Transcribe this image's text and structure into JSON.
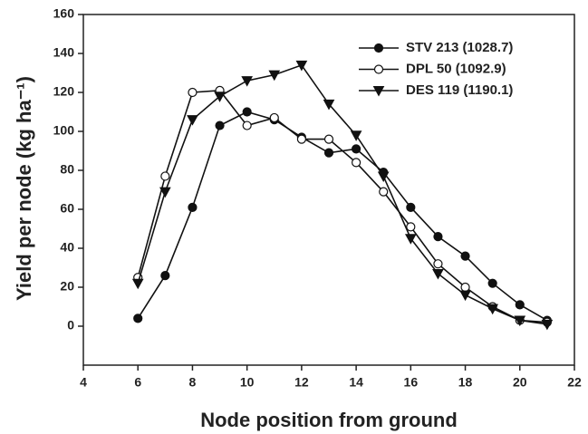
{
  "chart_data": {
    "type": "line",
    "xlabel": "Node position from ground",
    "ylabel": "Yield per node (kg ha⁻¹)",
    "x": [
      6,
      7,
      8,
      9,
      10,
      11,
      12,
      13,
      14,
      15,
      16,
      17,
      18,
      19,
      20,
      21
    ],
    "series": [
      {
        "name": "STV 213 (1028.7)",
        "color": "#111111",
        "marker": "circle",
        "values": [
          4,
          26,
          61,
          103,
          110,
          106,
          97,
          89,
          91,
          79,
          61,
          46,
          36,
          22,
          11,
          3
        ]
      },
      {
        "name": "DPL 50 (1092.9)",
        "color": "#111111",
        "marker": "open-circle",
        "values": [
          25,
          77,
          120,
          121,
          103,
          107,
          96,
          96,
          84,
          69,
          51,
          32,
          20,
          10,
          3,
          2
        ]
      },
      {
        "name": "DES 119 (1190.1)",
        "color": "#111111",
        "marker": "triangle-down",
        "values": [
          22,
          69,
          106,
          118,
          126,
          129,
          134,
          114,
          98,
          77,
          45,
          27,
          16,
          9,
          3,
          1
        ]
      }
    ],
    "xlim": [
      4,
      22
    ],
    "xticks": [
      4,
      6,
      8,
      10,
      12,
      14,
      16,
      18,
      20,
      22
    ],
    "ylim": [
      -20,
      160
    ],
    "yticks": [
      0,
      20,
      40,
      60,
      80,
      100,
      120,
      140,
      160
    ],
    "grid": false,
    "legend": "upper right"
  }
}
